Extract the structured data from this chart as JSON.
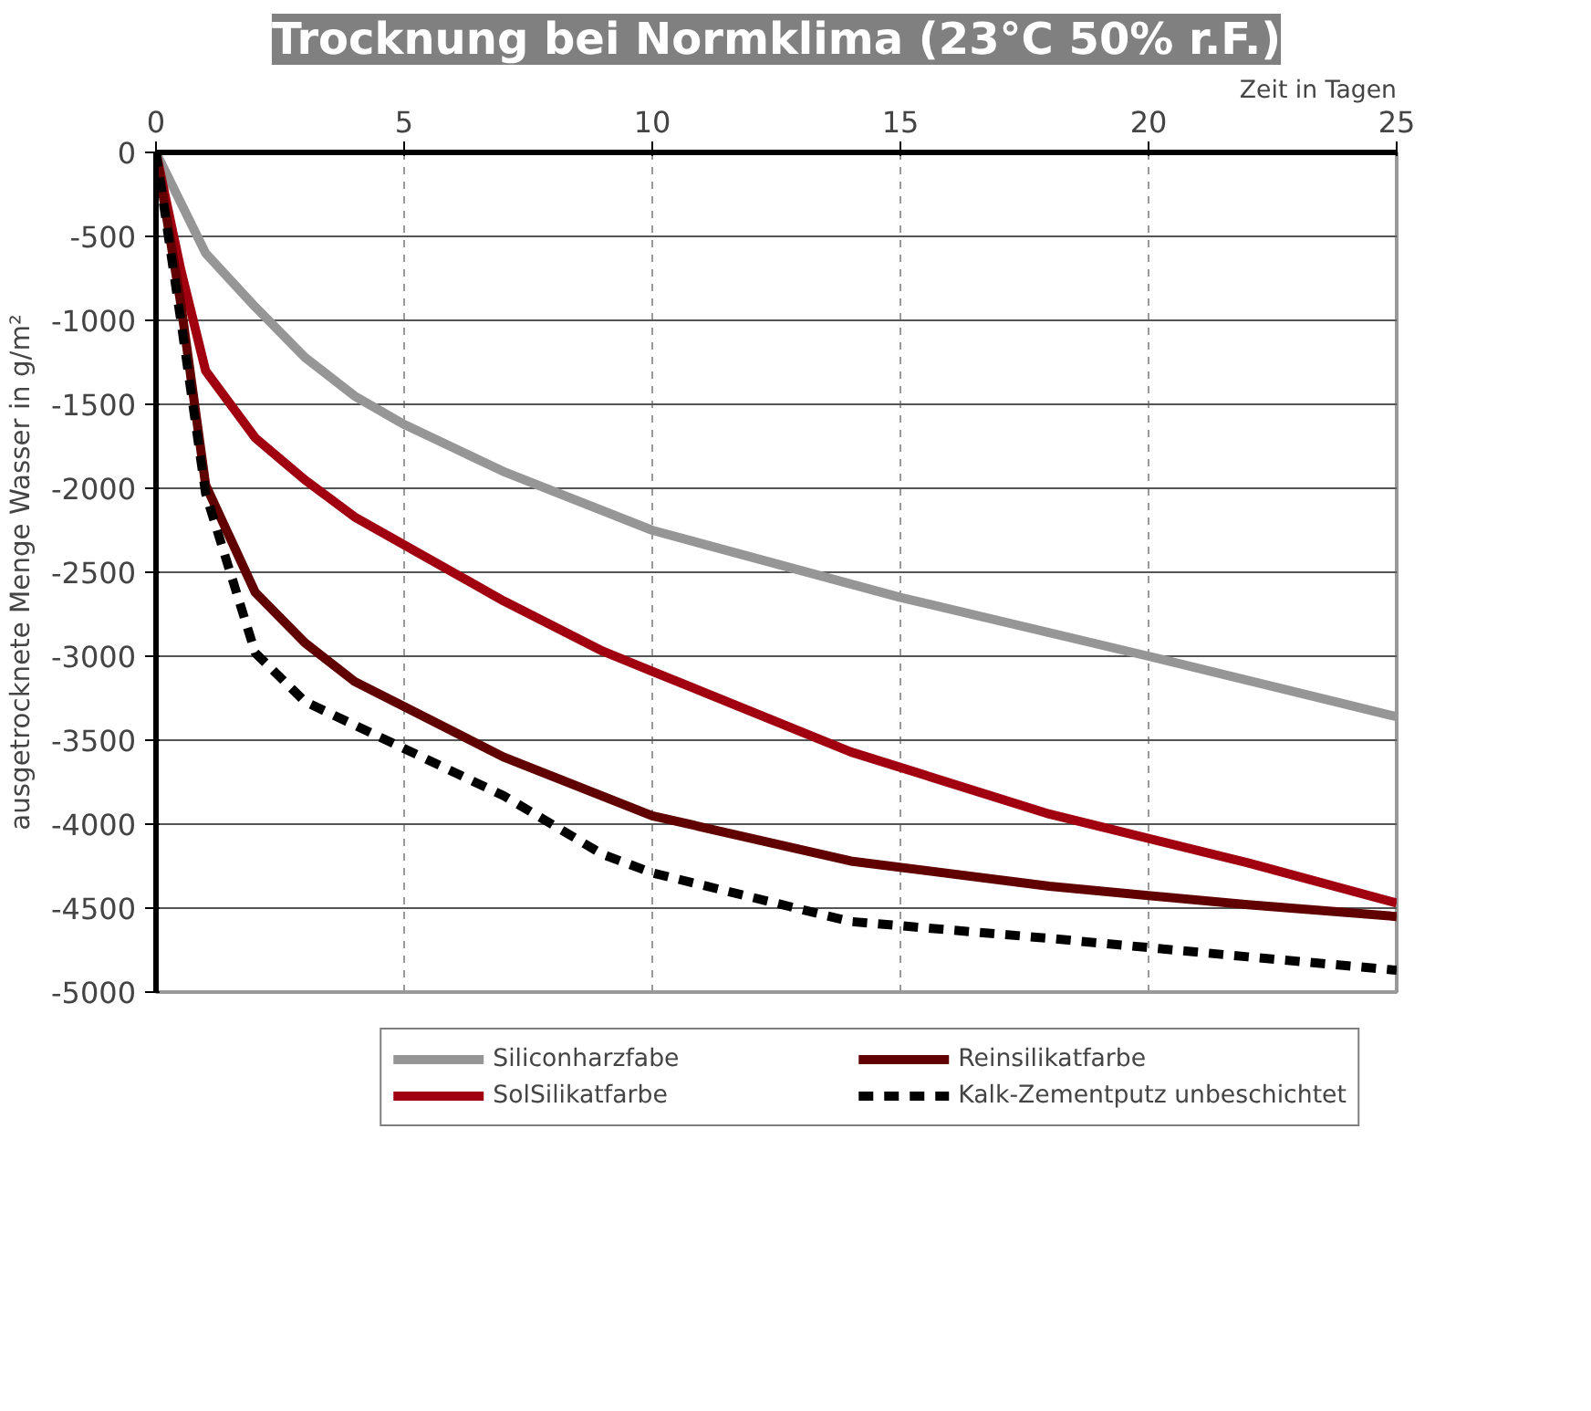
{
  "chart_data": {
    "type": "line",
    "title": "Trocknung bei Normklima (23°C 50% r.F.)",
    "xlabel": "Zeit in Tagen",
    "ylabel": "ausgetrocknete Menge Wasser in g/m²",
    "xlim": [
      0,
      25
    ],
    "ylim": [
      -5000,
      0
    ],
    "xticks": [
      0,
      5,
      10,
      15,
      20,
      25
    ],
    "yticks": [
      -5000,
      -4500,
      -4000,
      -3500,
      -3000,
      -2500,
      -2000,
      -1500,
      -1000,
      -500,
      0
    ],
    "grid": true,
    "legend": "bottom",
    "series": [
      {
        "name": "Siliconharzfabe",
        "color": "#969696",
        "line_style": "solid",
        "x": [
          0,
          1,
          2,
          3,
          4,
          5,
          7,
          10,
          15,
          20,
          25
        ],
        "values": [
          0,
          -600,
          -920,
          -1220,
          -1450,
          -1620,
          -1900,
          -2250,
          -2650,
          -3000,
          -3360
        ]
      },
      {
        "name": "SolSilikatfarbe",
        "color": "#a00010",
        "line_style": "solid",
        "x": [
          0,
          0.5,
          1,
          2,
          3,
          4,
          7,
          9,
          10,
          14,
          18,
          22,
          25
        ],
        "values": [
          0,
          -700,
          -1300,
          -1700,
          -1950,
          -2170,
          -2670,
          -2970,
          -3090,
          -3570,
          -3940,
          -4230,
          -4470
        ]
      },
      {
        "name": "Reinsilikatfarbe",
        "color": "#600000",
        "line_style": "solid",
        "x": [
          0,
          0.5,
          1,
          2,
          3,
          4,
          7,
          10,
          14,
          18,
          22,
          25
        ],
        "values": [
          0,
          -900,
          -1980,
          -2620,
          -2920,
          -3150,
          -3600,
          -3950,
          -4220,
          -4370,
          -4480,
          -4550
        ]
      },
      {
        "name": "Kalk-Zementputz unbeschichtet",
        "color": "#000000",
        "line_style": "dashed",
        "x": [
          0,
          0.5,
          1,
          2,
          3,
          4,
          7,
          9,
          10,
          14,
          18,
          22,
          25
        ],
        "values": [
          0,
          -1000,
          -2030,
          -2980,
          -3270,
          -3410,
          -3830,
          -4180,
          -4290,
          -4580,
          -4680,
          -4790,
          -4870
        ]
      }
    ]
  }
}
